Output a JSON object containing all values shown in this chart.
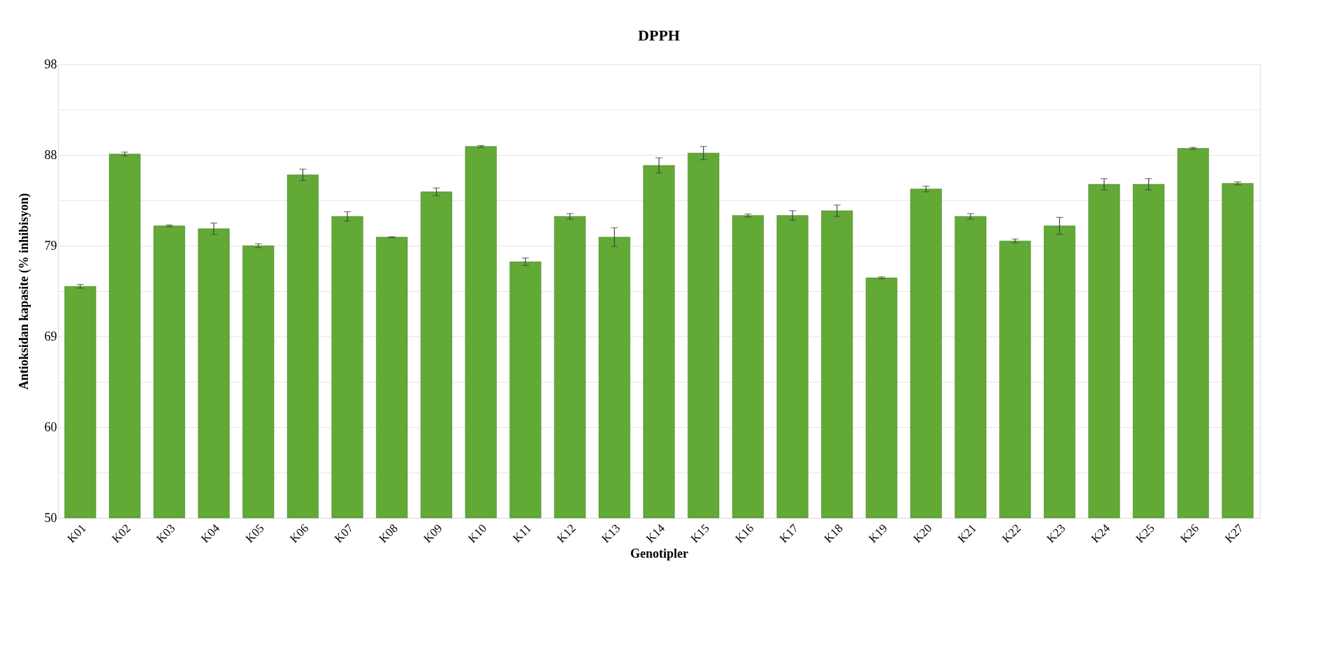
{
  "chart_data": {
    "type": "bar",
    "title": "DPPH",
    "xlabel": "Genotipler",
    "ylabel": "Antioksidan kapasite (% inhibisyon)",
    "categories": [
      "K01",
      "K02",
      "K03",
      "K04",
      "K05",
      "K06",
      "K07",
      "K08",
      "K09",
      "K10",
      "K11",
      "K12",
      "K13",
      "K14",
      "K15",
      "K16",
      "K17",
      "K18",
      "K19",
      "K20",
      "K21",
      "K22",
      "K23",
      "K24",
      "K25",
      "K26",
      "K27"
    ],
    "values": [
      74.5,
      88.5,
      80.9,
      80.6,
      78.8,
      86.3,
      81.9,
      79.7,
      84.5,
      89.3,
      77.1,
      81.9,
      79.7,
      87.3,
      88.6,
      82.0,
      82.0,
      82.5,
      75.4,
      84.8,
      81.9,
      79.3,
      80.9,
      85.3,
      85.3,
      89.1,
      85.4
    ],
    "errors": [
      0.2,
      0.2,
      0.1,
      0.6,
      0.2,
      0.6,
      0.5,
      0.05,
      0.4,
      0.1,
      0.4,
      0.3,
      1.0,
      0.8,
      0.7,
      0.15,
      0.5,
      0.6,
      0.1,
      0.3,
      0.3,
      0.2,
      0.9,
      0.6,
      0.6,
      0.1,
      0.15
    ],
    "color": "#62a936",
    "ylim": [
      50,
      98
    ],
    "yticks": [
      {
        "value": 50,
        "label": "50"
      },
      {
        "value": 54.8,
        "label": null
      },
      {
        "value": 59.6,
        "label": "60"
      },
      {
        "value": 64.4,
        "label": null
      },
      {
        "value": 69.2,
        "label": "69"
      },
      {
        "value": 74.0,
        "label": null
      },
      {
        "value": 78.8,
        "label": "79"
      },
      {
        "value": 83.6,
        "label": null
      },
      {
        "value": 88.4,
        "label": "88"
      },
      {
        "value": 93.2,
        "label": null
      },
      {
        "value": 98,
        "label": "98"
      }
    ],
    "grid": "y"
  }
}
